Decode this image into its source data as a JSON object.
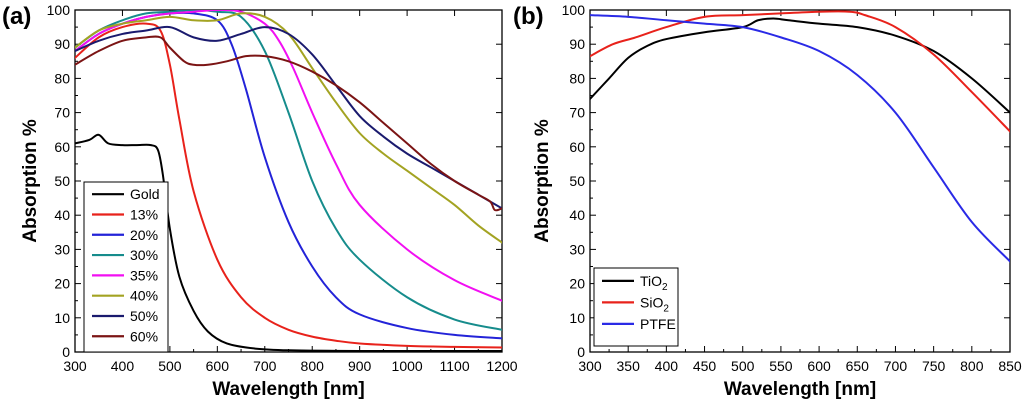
{
  "chart_data": [
    {
      "panel_label": "(a)",
      "type": "line",
      "xlabel": "Wavelength [nm]",
      "ylabel": "Absorption %",
      "xlim": [
        300,
        1200
      ],
      "ylim": [
        0,
        100
      ],
      "x_ticks": [
        300,
        400,
        500,
        600,
        700,
        800,
        900,
        1000,
        1100,
        1200
      ],
      "y_ticks": [
        0,
        10,
        20,
        30,
        40,
        50,
        60,
        70,
        80,
        90,
        100
      ],
      "legend_position": "bottom-left",
      "series": [
        {
          "name": "Gold",
          "color": "#000000",
          "x": [
            300,
            330,
            350,
            370,
            400,
            430,
            460,
            475,
            485,
            500,
            520,
            550,
            580,
            620,
            680,
            750,
            900,
            1200
          ],
          "y": [
            61,
            62,
            63.5,
            61,
            60.5,
            60.5,
            60.5,
            59,
            52,
            36,
            22,
            12,
            6,
            2.5,
            1,
            0.5,
            0.3,
            0.3
          ]
        },
        {
          "name": "13%",
          "color": "#e8221b",
          "x": [
            300,
            350,
            400,
            450,
            480,
            500,
            520,
            550,
            600,
            650,
            700,
            750,
            800,
            850,
            900,
            1000,
            1100,
            1200
          ],
          "y": [
            86,
            92,
            95,
            96,
            94,
            84,
            68,
            47,
            27,
            16,
            10,
            6.5,
            4.5,
            3.3,
            2.5,
            1.8,
            1.5,
            1.3
          ]
        },
        {
          "name": "20%",
          "color": "#2323d8",
          "x": [
            300,
            350,
            400,
            450,
            500,
            550,
            600,
            630,
            660,
            700,
            750,
            800,
            850,
            900,
            1000,
            1100,
            1200
          ],
          "y": [
            88,
            93,
            96,
            98,
            99,
            99,
            97,
            90,
            77,
            57,
            38,
            25,
            16,
            11,
            7,
            5,
            4
          ]
        },
        {
          "name": "30%",
          "color": "#168c8c",
          "x": [
            300,
            350,
            400,
            450,
            500,
            550,
            600,
            650,
            700,
            750,
            800,
            850,
            900,
            1000,
            1100,
            1200
          ],
          "y": [
            89,
            94,
            97,
            99,
            99.5,
            100,
            99.5,
            98,
            88,
            70,
            50,
            36,
            27,
            16,
            9.5,
            6.5
          ]
        },
        {
          "name": "35%",
          "color": "#f20ff2",
          "x": [
            300,
            350,
            400,
            450,
            500,
            550,
            600,
            650,
            700,
            730,
            760,
            800,
            850,
            900,
            1000,
            1100,
            1200
          ],
          "y": [
            88,
            93,
            96,
            98,
            99,
            99.5,
            100,
            99.5,
            96,
            91,
            83,
            70,
            55,
            43,
            30,
            21,
            15
          ]
        },
        {
          "name": "40%",
          "color": "#a3a322",
          "x": [
            300,
            350,
            400,
            450,
            500,
            550,
            600,
            650,
            700,
            750,
            800,
            850,
            900,
            950,
            1000,
            1050,
            1100,
            1150,
            1200
          ],
          "y": [
            89,
            94,
            96,
            97,
            98,
            97,
            97,
            99,
            98,
            93,
            83,
            73,
            64,
            58,
            53,
            48,
            43,
            37,
            32
          ]
        },
        {
          "name": "50%",
          "color": "#1a1a6e",
          "x": [
            300,
            350,
            400,
            450,
            500,
            550,
            600,
            650,
            700,
            750,
            800,
            850,
            900,
            950,
            1000,
            1050,
            1100,
            1150,
            1200
          ],
          "y": [
            88,
            91,
            93,
            94,
            95,
            92,
            91,
            93,
            95,
            93,
            87,
            78,
            69,
            63,
            58,
            54,
            50,
            46,
            42
          ]
        },
        {
          "name": "60%",
          "color": "#7b1414",
          "x": [
            300,
            350,
            400,
            450,
            480,
            500,
            530,
            550,
            580,
            620,
            660,
            700,
            750,
            800,
            850,
            900,
            950,
            1000,
            1050,
            1100,
            1150,
            1175,
            1185,
            1200
          ],
          "y": [
            84,
            88,
            91,
            92,
            92,
            89,
            85,
            84,
            84,
            85,
            86.5,
            86.5,
            85,
            82,
            78,
            73,
            67,
            61,
            55,
            50,
            46,
            44,
            41.5,
            42
          ]
        }
      ]
    },
    {
      "panel_label": "(b)",
      "type": "line",
      "xlabel": "Wavelength [nm]",
      "ylabel": "Absorption %",
      "xlim": [
        300,
        850
      ],
      "ylim": [
        0,
        100
      ],
      "x_ticks": [
        300,
        350,
        400,
        450,
        500,
        550,
        600,
        650,
        700,
        750,
        800,
        850
      ],
      "y_ticks": [
        0,
        10,
        20,
        30,
        40,
        50,
        60,
        70,
        80,
        90,
        100
      ],
      "legend_position": "bottom-left",
      "series": [
        {
          "name": "TiO",
          "sub": "2",
          "color": "#000000",
          "x": [
            300,
            325,
            350,
            375,
            400,
            450,
            500,
            520,
            540,
            560,
            600,
            650,
            700,
            750,
            800,
            850
          ],
          "y": [
            74,
            80,
            86,
            89.5,
            91.5,
            93.5,
            95,
            97,
            97.5,
            97,
            96,
            95,
            92.5,
            88,
            80,
            70
          ]
        },
        {
          "name": "SiO",
          "sub": "2",
          "color": "#e8221b",
          "x": [
            300,
            330,
            360,
            400,
            450,
            500,
            550,
            600,
            640,
            660,
            700,
            750,
            800,
            850
          ],
          "y": [
            86.5,
            90,
            92,
            95,
            98,
            98.5,
            99,
            99.5,
            99.5,
            98.5,
            95,
            87,
            76,
            64.5
          ]
        },
        {
          "name": "PTFE",
          "sub": "",
          "color": "#2a2ae6",
          "x": [
            300,
            350,
            400,
            450,
            500,
            550,
            600,
            650,
            700,
            750,
            800,
            850
          ],
          "y": [
            98.5,
            98,
            97,
            96,
            95,
            92,
            88,
            81,
            70,
            54,
            38,
            26.5
          ]
        }
      ]
    }
  ]
}
